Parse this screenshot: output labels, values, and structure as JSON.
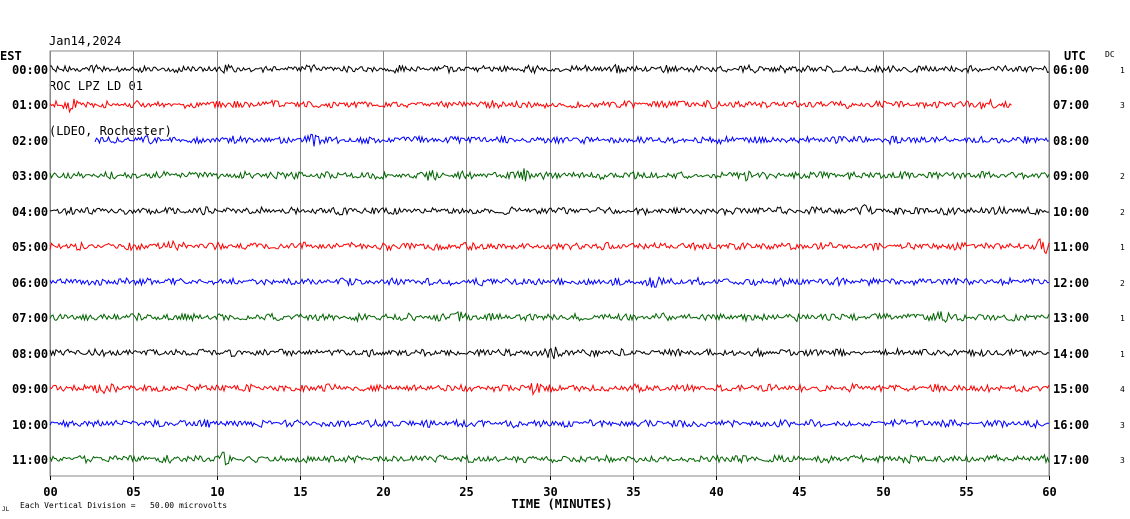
{
  "header": {
    "date": "Jan14,2024",
    "station": "ROC LPZ LD 01",
    "location": "(LDEO, Rochester)"
  },
  "chart_data": {
    "type": "line",
    "left_timezone_label": "EST",
    "right_timezone_label": "UTC",
    "dc_label": "DC",
    "xlabel": "TIME (MINUTES)",
    "xlim": [
      0,
      60
    ],
    "x_ticks": [
      "00",
      "05",
      "10",
      "15",
      "20",
      "25",
      "30",
      "35",
      "40",
      "45",
      "50",
      "55",
      "60"
    ],
    "scale_note": "Each Vertical Division =   50.00 microvolts",
    "corner_mark": "JL",
    "grid": true,
    "rows": [
      {
        "left": "00:00",
        "right": "06:00",
        "dc": "1",
        "color": "#000000",
        "start_min": 0,
        "end_min": 60,
        "events": []
      },
      {
        "left": "01:00",
        "right": "07:00",
        "dc": "3",
        "color": "#ff0000",
        "start_min": 0,
        "end_min": 57.8,
        "events": [
          1.2,
          56.3
        ]
      },
      {
        "left": "02:00",
        "right": "08:00",
        "dc": "",
        "color": "#0000ff",
        "start_min": 2.7,
        "end_min": 60,
        "events": [
          15.7
        ]
      },
      {
        "left": "03:00",
        "right": "09:00",
        "dc": "2",
        "color": "#006400",
        "start_min": 0,
        "end_min": 60,
        "events": [
          22.8,
          28.4,
          41.8
        ]
      },
      {
        "left": "04:00",
        "right": "10:00",
        "dc": "2",
        "color": "#000000",
        "start_min": 0,
        "end_min": 60,
        "events": [
          48.8
        ]
      },
      {
        "left": "05:00",
        "right": "11:00",
        "dc": "1",
        "color": "#ff0000",
        "start_min": 0,
        "end_min": 60,
        "events": [
          7.6,
          59.6
        ]
      },
      {
        "left": "06:00",
        "right": "12:00",
        "dc": "2",
        "color": "#0000ff",
        "start_min": 0,
        "end_min": 60,
        "events": [
          36.4
        ]
      },
      {
        "left": "07:00",
        "right": "13:00",
        "dc": "1",
        "color": "#006400",
        "start_min": 0,
        "end_min": 60,
        "events": [
          24.6,
          53.7
        ]
      },
      {
        "left": "08:00",
        "right": "14:00",
        "dc": "1",
        "color": "#000000",
        "start_min": 0,
        "end_min": 60,
        "events": [
          30.2
        ]
      },
      {
        "left": "09:00",
        "right": "15:00",
        "dc": "4",
        "color": "#ff0000",
        "start_min": 0,
        "end_min": 60,
        "events": [
          3.1,
          29.1
        ]
      },
      {
        "left": "10:00",
        "right": "16:00",
        "dc": "3",
        "color": "#0000ff",
        "start_min": 0,
        "end_min": 60,
        "events": []
      },
      {
        "left": "11:00",
        "right": "17:00",
        "dc": "3",
        "color": "#006400",
        "start_min": 0,
        "end_min": 60,
        "events": [
          10.4
        ]
      }
    ]
  }
}
